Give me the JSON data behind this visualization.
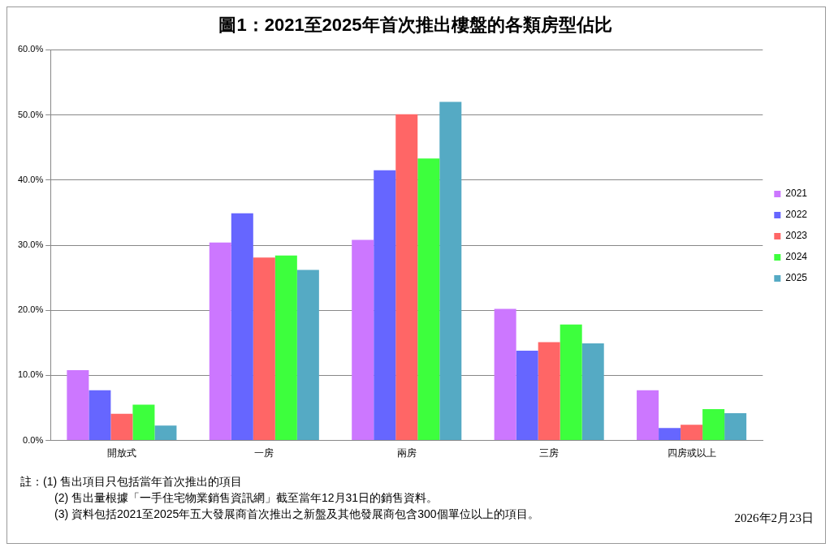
{
  "chart_data": {
    "type": "bar",
    "title": "圖1：2021至2025年首次推出樓盤的各類房型佔比",
    "categories": [
      "開放式",
      "一房",
      "兩房",
      "三房",
      "四房或以上"
    ],
    "series": [
      {
        "name": "2021",
        "color": "#cc77ff",
        "values": [
          10.8,
          30.4,
          30.8,
          20.2,
          7.7
        ]
      },
      {
        "name": "2022",
        "color": "#6666ff",
        "values": [
          7.7,
          34.9,
          41.5,
          13.8,
          1.9
        ]
      },
      {
        "name": "2023",
        "color": "#ff6666",
        "values": [
          4.1,
          28.1,
          50.1,
          15.1,
          2.4
        ]
      },
      {
        "name": "2024",
        "color": "#3dff3d",
        "values": [
          5.5,
          28.4,
          43.3,
          17.8,
          4.8
        ]
      },
      {
        "name": "2025",
        "color": "#55aac4",
        "values": [
          2.3,
          26.2,
          52.0,
          14.9,
          4.2
        ]
      }
    ],
    "ylim": [
      0,
      60
    ],
    "yticks": [
      {
        "value": 0,
        "label": "0.0%"
      },
      {
        "value": 10,
        "label": "10.0%"
      },
      {
        "value": 20,
        "label": "20.0%"
      },
      {
        "value": 30,
        "label": "30.0%"
      },
      {
        "value": 40,
        "label": "40.0%"
      },
      {
        "value": 50,
        "label": "50.0%"
      },
      {
        "value": 60,
        "label": "60.0%"
      }
    ],
    "grid": "y",
    "legend": "right",
    "annotations": [
      "註：(1) 售出項目只包括當年首次推出的項目",
      "(2) 售出量根據「一手住宅物業銷售資訊網」截至當年12月31日的銷售資料。",
      "(3) 資料包括2021至2025年五大發展商首次推出之新盤及其他發展商包含300個單位以上的項目。",
      "2026年2月23日"
    ]
  }
}
